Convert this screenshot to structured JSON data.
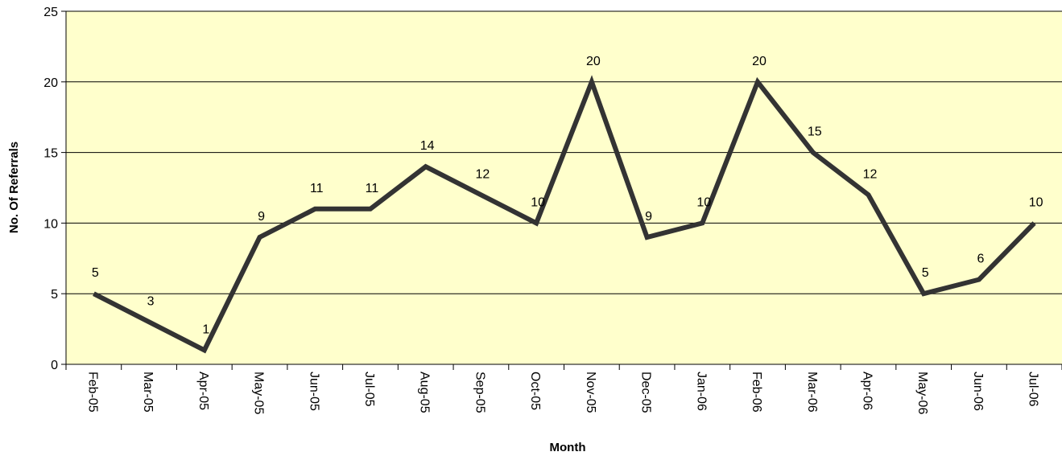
{
  "chart_data": {
    "type": "line",
    "title": "",
    "xlabel": "Month",
    "ylabel": "No. Of Referrals",
    "categories": [
      "Feb-05",
      "Mar-05",
      "Apr-05",
      "May-05",
      "Jun-05",
      "Jul-05",
      "Aug-05",
      "Sep-05",
      "Oct-05",
      "Nov-05",
      "Dec-05",
      "Jan-06",
      "Feb-06",
      "Mar-06",
      "Apr-06",
      "May-06",
      "Jun-06",
      "Jul-06"
    ],
    "series": [
      {
        "values": [
          5,
          3,
          1,
          9,
          11,
          11,
          14,
          12,
          10,
          20,
          9,
          10,
          20,
          15,
          12,
          5,
          6,
          10
        ]
      }
    ],
    "data_labels": [
      "5",
      "3",
      "1",
      "9",
      "11",
      "11",
      "14",
      "12",
      "10",
      "20",
      "9",
      "10",
      "20",
      "15",
      "12",
      "5",
      "6",
      "10"
    ],
    "ylim": [
      0,
      25
    ],
    "yticks": [
      "0",
      "5",
      "10",
      "15",
      "20",
      "25"
    ],
    "ytick_values": [
      0,
      5,
      10,
      15,
      20,
      25
    ],
    "grid": "horizontal",
    "colors": {
      "plot_background": "#FFFFCC",
      "line": "#333333",
      "gridline": "#000000"
    }
  }
}
